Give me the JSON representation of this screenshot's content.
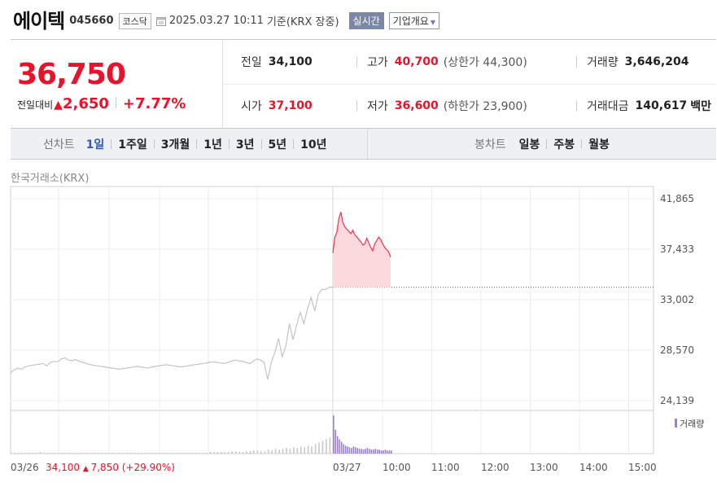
{
  "header": {
    "name": "에이텍",
    "code": "045660",
    "market": "코스닥",
    "as_of": "2025.03.27 10:11",
    "basis": "기준(KRX 장중)",
    "realtime_button": "실시간",
    "company_button": "기업개요"
  },
  "quote": {
    "price": "36,750",
    "change_label": "전일대비",
    "change_arrow": "▲",
    "change": "2,650",
    "change_pct": "+7.77%",
    "prev_close_label": "전일",
    "prev_close": "34,100",
    "high_label": "고가",
    "high": "40,700",
    "upper_limit": "(상한가 44,300)",
    "volume_label": "거래량",
    "volume": "3,646,204",
    "open_label": "시가",
    "open": "37,100",
    "low_label": "저가",
    "low": "36,600",
    "lower_limit": "(하한가 23,900)",
    "value_label": "거래대금",
    "value": "140,617",
    "value_unit": "백만"
  },
  "periods": {
    "line_label": "선차트",
    "line_items": [
      "1일",
      "1주일",
      "3개월",
      "1년",
      "3년",
      "5년",
      "10년"
    ],
    "selected": "1일",
    "candle_label": "봉차트",
    "candle_items": [
      "일봉",
      "주봉",
      "월봉"
    ]
  },
  "chart_data": {
    "type": "line",
    "exchange_label": "한국거래소(KRX)",
    "y_ticks": [
      "41,865",
      "37,433",
      "33,002",
      "28,570",
      "24,139"
    ],
    "ylim": [
      24139,
      41865
    ],
    "prev_close_line": 34100,
    "x_labels": [
      "03/26",
      "03/27",
      "10:00",
      "11:00",
      "12:00",
      "13:00",
      "14:00",
      "15:00"
    ],
    "legend": "거래량",
    "prev_day_summary": {
      "date": "03/26",
      "close": "34,100",
      "arrow": "▲",
      "change": "7,850",
      "pct": "(+29.90%)"
    },
    "series": [
      {
        "values_prev_day": [
          26600,
          26850,
          27000,
          26900,
          27100,
          27200,
          27250,
          27300,
          27350,
          27400,
          27200,
          27500,
          27600,
          27550,
          27800,
          27900,
          27700,
          27650,
          27750,
          27600,
          27500,
          27400,
          27300,
          27250,
          27200,
          27150,
          27100,
          27050,
          27000,
          26950,
          26900,
          26950,
          27000,
          27050,
          27100,
          27150,
          27100,
          27050,
          27000,
          27100,
          27150,
          27200,
          27250,
          27300,
          27250,
          27200,
          27150,
          27100,
          27150,
          27200,
          27250,
          27300,
          27350,
          27400,
          27450,
          27500,
          27550,
          27500,
          27450,
          27400,
          27500,
          27600,
          27700,
          27650,
          27600,
          27500,
          27400,
          27600,
          27800,
          27700,
          27500,
          26000,
          27500,
          28400,
          29600,
          28000,
          28900,
          30900,
          29500,
          30800,
          31900,
          30900,
          32200,
          33200,
          32000,
          33500,
          33900,
          33900,
          34100,
          34100
        ],
        "values_today": [
          37100,
          38500,
          38900,
          40100,
          40700,
          39800,
          39400,
          39200,
          39000,
          38800,
          39100,
          38700,
          38500,
          38300,
          38100,
          37800,
          37900,
          38400,
          38000,
          37600,
          37300,
          37900,
          38200,
          38500,
          38300,
          37900,
          37600,
          37400,
          37200,
          36750
        ]
      }
    ],
    "volume_prev_day": [
      1,
      1,
      1,
      1,
      1,
      1,
      1,
      1,
      2,
      1,
      1,
      1,
      1,
      1,
      1,
      1,
      1,
      1,
      1,
      1,
      1,
      1,
      1,
      1,
      1,
      1,
      1,
      1,
      1,
      1,
      1,
      1,
      1,
      1,
      1,
      1,
      1,
      1,
      1,
      1,
      1,
      1,
      1,
      1,
      1,
      1,
      1,
      1,
      1,
      1,
      1,
      1,
      1,
      1,
      1,
      2,
      2,
      2,
      2,
      2,
      2,
      3,
      3,
      2,
      2,
      3,
      3,
      4,
      4,
      3,
      3,
      5,
      4,
      6,
      5,
      6,
      7,
      6,
      8,
      7,
      9,
      8,
      10,
      9,
      12,
      14,
      16,
      18,
      20,
      22
    ],
    "volume_today": [
      48,
      30,
      22,
      18,
      15,
      12,
      10,
      9,
      8,
      7,
      9,
      8,
      7,
      6,
      6,
      5,
      6,
      7,
      6,
      5,
      5,
      6,
      5,
      5,
      4,
      4,
      5,
      4,
      4,
      4
    ]
  }
}
